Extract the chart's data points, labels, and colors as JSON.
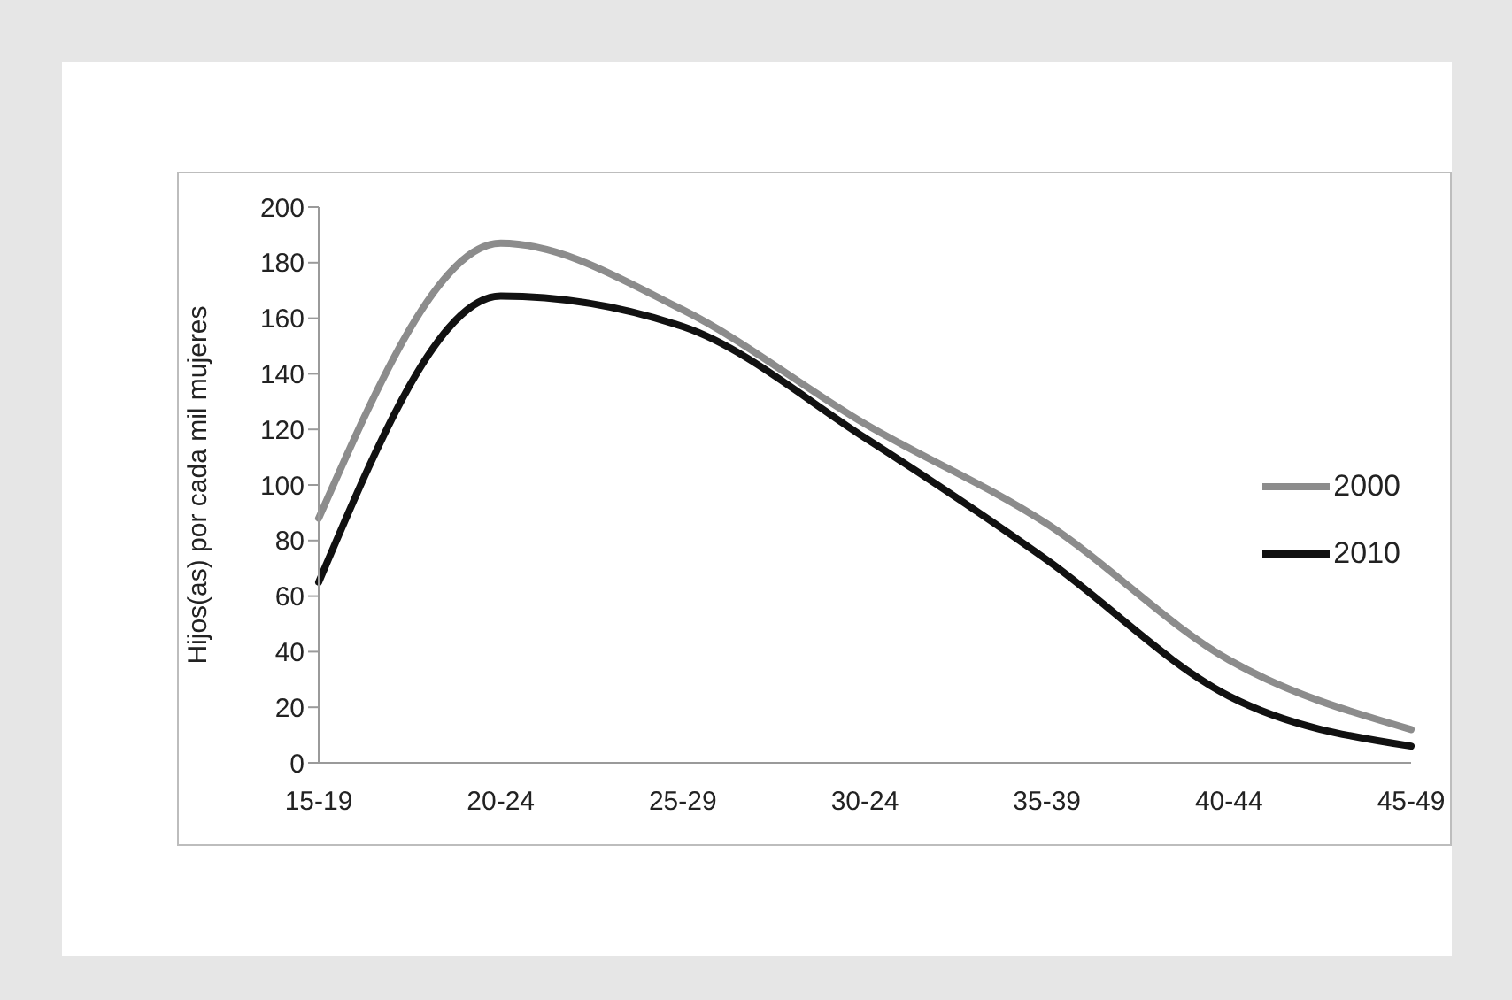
{
  "chart_data": {
    "type": "line",
    "ylabel": "Hijos(as) por cada mil mujeres",
    "categories": [
      "15-19",
      "20-24",
      "25-29",
      "30-24",
      "35-39",
      "40-44",
      "45-49"
    ],
    "series": [
      {
        "name": "2000",
        "color": "#8c8c8c",
        "values": [
          88,
          187,
          163,
          122,
          86,
          37,
          12
        ]
      },
      {
        "name": "2010",
        "color": "#111111",
        "values": [
          65,
          168,
          157,
          117,
          73,
          24,
          6
        ]
      }
    ],
    "ylim": [
      0,
      200
    ],
    "yticks": [
      0,
      20,
      40,
      60,
      80,
      100,
      120,
      140,
      160,
      180,
      200
    ],
    "grid": false,
    "legend": "right",
    "marker": "none",
    "line_style": "solid"
  }
}
